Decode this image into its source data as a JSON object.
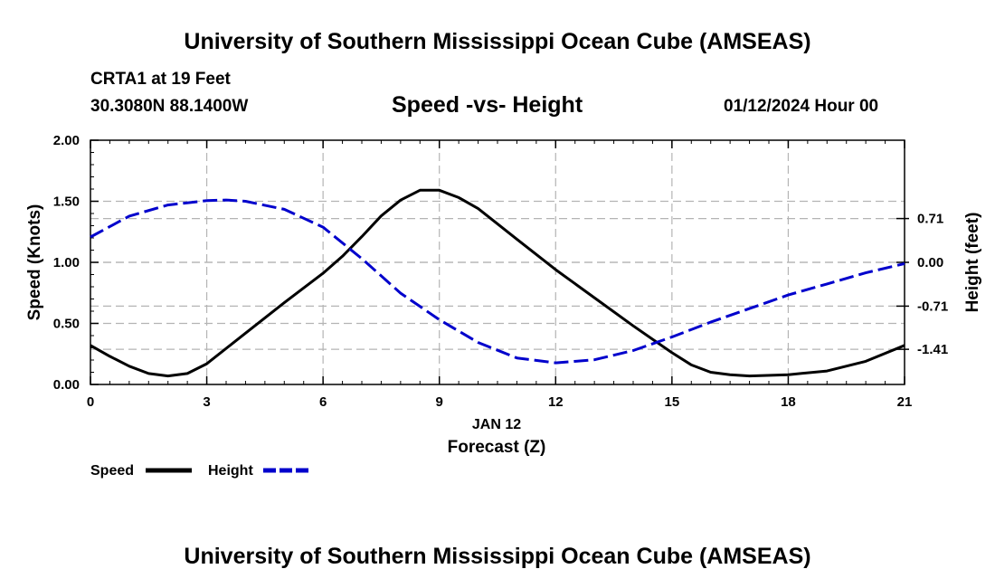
{
  "header": {
    "title_top": "University of Southern Mississippi Ocean Cube (AMSEAS)",
    "station": "CRTA1 at 19 Feet",
    "coords": "30.3080N  88.1400W",
    "chart_title": "Speed -vs- Height",
    "datetime": "01/12/2024 Hour 00",
    "title_bottom": "University of Southern Mississippi Ocean Cube (AMSEAS)"
  },
  "legend": {
    "speed_label": "Speed",
    "height_label": "Height"
  },
  "colors": {
    "speed": "#000000",
    "height": "#0000cc",
    "grid": "#b4b4b4"
  },
  "chart_data": {
    "type": "line",
    "title": "Speed -vs- Height",
    "xlabel": "Forecast (Z)",
    "xlabel_date": "JAN 12",
    "ylabel": "Speed (Knots)",
    "y2label": "Height (feet)",
    "xlim": [
      0,
      21
    ],
    "ylim": [
      0,
      2
    ],
    "y2lim": [
      -1.98,
      1.98
    ],
    "xticks": [
      0,
      3,
      6,
      9,
      12,
      15,
      18,
      21
    ],
    "xtick_labels": [
      "0",
      "3",
      "6",
      "9",
      "12",
      "15",
      "18",
      "21"
    ],
    "yticks": [
      0,
      0.5,
      1,
      1.5,
      2
    ],
    "ytick_labels": [
      "0.00",
      "0.50",
      "1.00",
      "1.50",
      "2.00"
    ],
    "y2ticks": [
      -1.41,
      -0.71,
      0,
      0.71
    ],
    "y2tick_labels": [
      "-1.41",
      "-0.71",
      "0.00",
      "0.71"
    ],
    "grid": true,
    "series": [
      {
        "name": "Speed",
        "axis": "left",
        "style": "solid",
        "x": [
          0,
          0.5,
          1,
          1.5,
          2,
          2.5,
          3,
          4,
          5,
          6,
          6.5,
          7,
          7.5,
          8,
          8.5,
          9,
          9.5,
          10,
          11,
          12,
          13,
          14,
          15,
          15.5,
          16,
          16.5,
          17,
          18,
          19,
          20,
          21
        ],
        "values": [
          0.32,
          0.23,
          0.15,
          0.09,
          0.07,
          0.09,
          0.17,
          0.42,
          0.67,
          0.91,
          1.05,
          1.21,
          1.38,
          1.51,
          1.59,
          1.59,
          1.53,
          1.44,
          1.19,
          0.94,
          0.71,
          0.48,
          0.26,
          0.16,
          0.1,
          0.08,
          0.07,
          0.08,
          0.11,
          0.19,
          0.32
        ]
      },
      {
        "name": "Height",
        "axis": "right",
        "style": "dashed",
        "x": [
          0,
          1,
          2,
          3,
          3.5,
          4,
          5,
          6,
          7,
          8,
          9,
          10,
          11,
          12,
          13,
          14,
          15,
          16,
          17,
          18,
          19,
          20,
          21
        ],
        "values": [
          0.41,
          0.75,
          0.93,
          1.0,
          1.01,
          0.99,
          0.86,
          0.57,
          0.06,
          -0.5,
          -0.93,
          -1.3,
          -1.55,
          -1.63,
          -1.58,
          -1.43,
          -1.21,
          -0.97,
          -0.75,
          -0.53,
          -0.35,
          -0.17,
          -0.02
        ]
      }
    ]
  }
}
